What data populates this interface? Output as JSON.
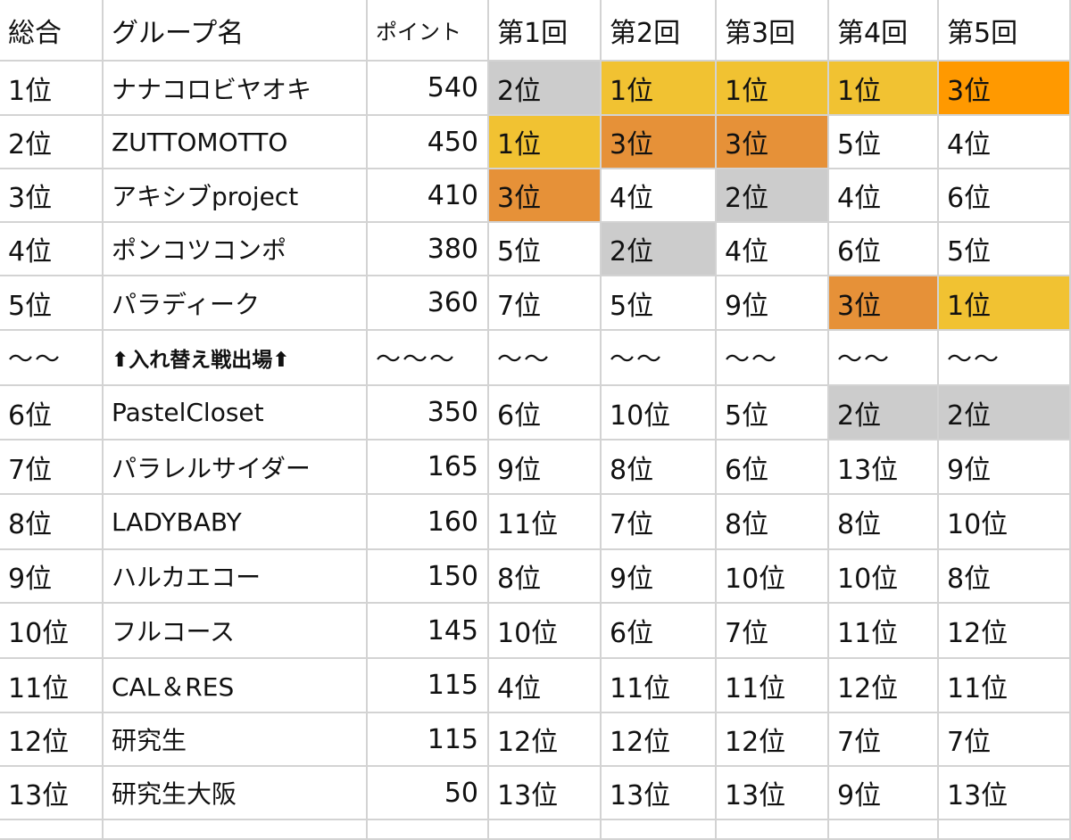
{
  "colors": {
    "gridline": "#d3d3d3",
    "rank_1": "#f1c232",
    "rank_2": "#cccccc",
    "rank_3": "#e69138",
    "rank_3_bright": "#ff9900"
  },
  "header": [
    "総合",
    "グループ名",
    "ポイント",
    "第1回",
    "第2回",
    "第3回",
    "第4回",
    "第5回"
  ],
  "rows": [
    {
      "overall": "1位",
      "group": "ナナコロビヤオキ",
      "points": "540",
      "rounds": [
        {
          "text": "2位",
          "fill": "#cccccc"
        },
        {
          "text": "1位",
          "fill": "#f1c232"
        },
        {
          "text": "1位",
          "fill": "#f1c232"
        },
        {
          "text": "1位",
          "fill": "#f1c232"
        },
        {
          "text": "3位",
          "fill": "#ff9900"
        }
      ]
    },
    {
      "overall": "2位",
      "group": "ZUTTOMOTTO",
      "points": "450",
      "rounds": [
        {
          "text": "1位",
          "fill": "#f1c232"
        },
        {
          "text": "3位",
          "fill": "#e69138"
        },
        {
          "text": "3位",
          "fill": "#e69138"
        },
        {
          "text": "5位",
          "fill": ""
        },
        {
          "text": "4位",
          "fill": ""
        }
      ]
    },
    {
      "overall": "3位",
      "group": "アキシブproject",
      "points": "410",
      "rounds": [
        {
          "text": "3位",
          "fill": "#e69138"
        },
        {
          "text": "4位",
          "fill": ""
        },
        {
          "text": "2位",
          "fill": "#cccccc"
        },
        {
          "text": "4位",
          "fill": ""
        },
        {
          "text": "6位",
          "fill": ""
        }
      ]
    },
    {
      "overall": "4位",
      "group": "ポンコツコンポ",
      "points": "380",
      "rounds": [
        {
          "text": "5位",
          "fill": ""
        },
        {
          "text": "2位",
          "fill": "#cccccc"
        },
        {
          "text": "4位",
          "fill": ""
        },
        {
          "text": "6位",
          "fill": ""
        },
        {
          "text": "5位",
          "fill": ""
        }
      ]
    },
    {
      "overall": "5位",
      "group": "パラディーク",
      "points": "360",
      "rounds": [
        {
          "text": "7位",
          "fill": ""
        },
        {
          "text": "5位",
          "fill": ""
        },
        {
          "text": "9位",
          "fill": ""
        },
        {
          "text": "3位",
          "fill": "#e69138"
        },
        {
          "text": "1位",
          "fill": "#f1c232"
        }
      ]
    },
    {
      "separator": true,
      "overall": "〜〜",
      "group": "⬆入れ替え戦出場⬆",
      "points": "〜〜〜",
      "rounds": [
        {
          "text": "〜〜",
          "fill": ""
        },
        {
          "text": "〜〜",
          "fill": ""
        },
        {
          "text": "〜〜",
          "fill": ""
        },
        {
          "text": "〜〜",
          "fill": ""
        },
        {
          "text": "〜〜",
          "fill": ""
        }
      ]
    },
    {
      "overall": "6位",
      "group": "PastelCloset",
      "points": "350",
      "rounds": [
        {
          "text": "6位",
          "fill": ""
        },
        {
          "text": "10位",
          "fill": ""
        },
        {
          "text": "5位",
          "fill": ""
        },
        {
          "text": "2位",
          "fill": "#cccccc"
        },
        {
          "text": "2位",
          "fill": "#cccccc"
        }
      ]
    },
    {
      "overall": "7位",
      "group": "パラレルサイダー",
      "points": "165",
      "rounds": [
        {
          "text": "9位",
          "fill": ""
        },
        {
          "text": "8位",
          "fill": ""
        },
        {
          "text": "6位",
          "fill": ""
        },
        {
          "text": "13位",
          "fill": ""
        },
        {
          "text": "9位",
          "fill": ""
        }
      ]
    },
    {
      "overall": "8位",
      "group": "LADYBABY",
      "points": "160",
      "rounds": [
        {
          "text": "11位",
          "fill": ""
        },
        {
          "text": "7位",
          "fill": ""
        },
        {
          "text": "8位",
          "fill": ""
        },
        {
          "text": "8位",
          "fill": ""
        },
        {
          "text": "10位",
          "fill": ""
        }
      ]
    },
    {
      "overall": "9位",
      "group": "ハルカエコー",
      "points": "150",
      "rounds": [
        {
          "text": "8位",
          "fill": ""
        },
        {
          "text": "9位",
          "fill": ""
        },
        {
          "text": "10位",
          "fill": ""
        },
        {
          "text": "10位",
          "fill": ""
        },
        {
          "text": "8位",
          "fill": ""
        }
      ]
    },
    {
      "overall": "10位",
      "group": "フルコース",
      "points": "145",
      "rounds": [
        {
          "text": "10位",
          "fill": ""
        },
        {
          "text": "6位",
          "fill": ""
        },
        {
          "text": "7位",
          "fill": ""
        },
        {
          "text": "11位",
          "fill": ""
        },
        {
          "text": "12位",
          "fill": ""
        }
      ]
    },
    {
      "overall": "11位",
      "group": "CAL＆RES",
      "points": "115",
      "rounds": [
        {
          "text": "4位",
          "fill": ""
        },
        {
          "text": "11位",
          "fill": ""
        },
        {
          "text": "11位",
          "fill": ""
        },
        {
          "text": "12位",
          "fill": ""
        },
        {
          "text": "11位",
          "fill": ""
        }
      ]
    },
    {
      "overall": "12位",
      "group": "研究生",
      "points": "115",
      "rounds": [
        {
          "text": "12位",
          "fill": ""
        },
        {
          "text": "12位",
          "fill": ""
        },
        {
          "text": "12位",
          "fill": ""
        },
        {
          "text": "7位",
          "fill": ""
        },
        {
          "text": "7位",
          "fill": ""
        }
      ]
    },
    {
      "overall": "13位",
      "group": "研究生大阪",
      "points": "50",
      "rounds": [
        {
          "text": "13位",
          "fill": ""
        },
        {
          "text": "13位",
          "fill": ""
        },
        {
          "text": "13位",
          "fill": ""
        },
        {
          "text": "9位",
          "fill": ""
        },
        {
          "text": "13位",
          "fill": ""
        }
      ]
    }
  ]
}
